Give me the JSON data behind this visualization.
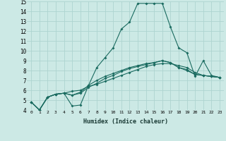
{
  "xlabel": "Humidex (Indice chaleur)",
  "bg_color": "#cce9e5",
  "grid_color": "#aed4d0",
  "line_color": "#1a6b60",
  "x": [
    0,
    1,
    2,
    3,
    4,
    5,
    6,
    7,
    8,
    9,
    10,
    11,
    12,
    13,
    14,
    15,
    16,
    17,
    18,
    19,
    20,
    21,
    22,
    23
  ],
  "line1": [
    4.8,
    4.0,
    5.3,
    5.6,
    5.7,
    4.4,
    4.5,
    6.5,
    8.3,
    9.3,
    10.3,
    12.2,
    12.9,
    14.8,
    14.8,
    14.8,
    14.8,
    12.4,
    10.3,
    9.8,
    7.4,
    9.0,
    7.5,
    7.3
  ],
  "line2": [
    4.8,
    4.0,
    5.3,
    5.6,
    5.7,
    5.9,
    6.0,
    6.4,
    6.6,
    6.9,
    7.2,
    7.5,
    7.8,
    8.1,
    8.4,
    8.6,
    8.7,
    8.7,
    8.5,
    8.3,
    7.8,
    7.5,
    7.4,
    7.3
  ],
  "line3": [
    4.8,
    4.0,
    5.3,
    5.6,
    5.7,
    5.5,
    5.7,
    6.3,
    6.7,
    7.2,
    7.5,
    7.9,
    8.2,
    8.4,
    8.6,
    8.8,
    9.0,
    8.8,
    8.3,
    8.0,
    7.6,
    7.5,
    7.4,
    7.3
  ],
  "line4": [
    4.8,
    4.0,
    5.3,
    5.6,
    5.7,
    5.5,
    5.8,
    6.5,
    7.0,
    7.4,
    7.7,
    8.0,
    8.3,
    8.5,
    8.7,
    8.8,
    9.0,
    8.8,
    8.3,
    8.1,
    7.6,
    7.5,
    7.4,
    7.3
  ],
  "ylim": [
    4,
    15
  ],
  "xlim": [
    -0.5,
    23.5
  ],
  "yticks": [
    4,
    5,
    6,
    7,
    8,
    9,
    10,
    11,
    12,
    13,
    14,
    15
  ],
  "xticks": [
    0,
    1,
    2,
    3,
    4,
    5,
    6,
    7,
    8,
    9,
    10,
    11,
    12,
    13,
    14,
    15,
    16,
    17,
    18,
    19,
    20,
    21,
    22,
    23
  ]
}
